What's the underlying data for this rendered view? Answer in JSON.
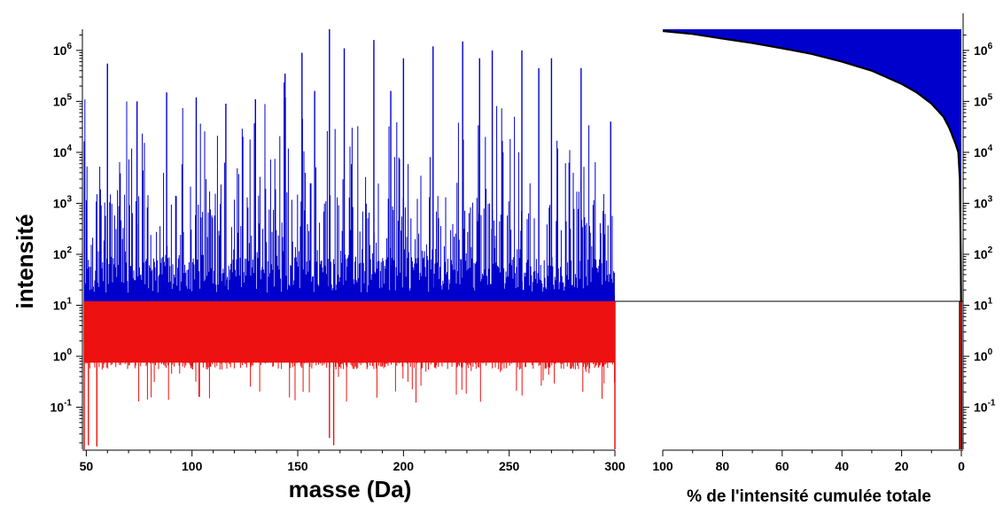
{
  "chart_data": [
    {
      "type": "mass-spectrum",
      "xlabel": "masse (Da)",
      "ylabel": "intensité",
      "xlim": [
        49,
        300
      ],
      "ylim": [
        0.015,
        2600000
      ],
      "yscale": "log",
      "x_ticks": [
        50,
        100,
        150,
        200,
        250,
        300
      ],
      "y_ticks": [
        {
          "value": 0.1,
          "base": "10",
          "exp": "-1"
        },
        {
          "value": 1,
          "base": "10",
          "exp": "0"
        },
        {
          "value": 10,
          "base": "10",
          "exp": "1"
        },
        {
          "value": 100,
          "base": "10",
          "exp": "2"
        },
        {
          "value": 1000,
          "base": "10",
          "exp": "3"
        },
        {
          "value": 10000,
          "base": "10",
          "exp": "4"
        },
        {
          "value": 100000,
          "base": "10",
          "exp": "5"
        },
        {
          "value": 1000000,
          "base": "10",
          "exp": "6"
        }
      ],
      "threshold": 12,
      "colors": {
        "above_threshold": "#0000cc",
        "below_threshold": "#ee1111"
      },
      "notable_peaks": [
        {
          "x": 60,
          "y": 550000
        },
        {
          "x": 74,
          "y": 100000
        },
        {
          "x": 88,
          "y": 150000
        },
        {
          "x": 102,
          "y": 120000
        },
        {
          "x": 116,
          "y": 90000
        },
        {
          "x": 130,
          "y": 110000
        },
        {
          "x": 144,
          "y": 350000
        },
        {
          "x": 152,
          "y": 900000
        },
        {
          "x": 158,
          "y": 160000
        },
        {
          "x": 165,
          "y": 2600000
        },
        {
          "x": 172,
          "y": 1100000
        },
        {
          "x": 186,
          "y": 1600000
        },
        {
          "x": 194,
          "y": 160000
        },
        {
          "x": 200,
          "y": 700000
        },
        {
          "x": 214,
          "y": 1200000
        },
        {
          "x": 228,
          "y": 1500000
        },
        {
          "x": 236,
          "y": 700000
        },
        {
          "x": 242,
          "y": 1000000
        },
        {
          "x": 256,
          "y": 1000000
        },
        {
          "x": 264,
          "y": 450000
        },
        {
          "x": 270,
          "y": 700000
        },
        {
          "x": 284,
          "y": 450000
        },
        {
          "x": 298,
          "y": 40000
        }
      ],
      "notable_dips": [
        {
          "x": 51,
          "y": 0.018
        },
        {
          "x": 55,
          "y": 0.017
        },
        {
          "x": 165,
          "y": 0.025
        },
        {
          "x": 167,
          "y": 0.018
        }
      ]
    },
    {
      "type": "area",
      "xlabel": "% de l'intensité cumulée totale",
      "xlim": [
        100,
        0
      ],
      "x_ticks": [
        100,
        80,
        60,
        40,
        20,
        0
      ],
      "yscale": "log",
      "ylim": [
        0.015,
        2600000
      ],
      "y_ticks": [
        {
          "value": 0.1,
          "base": "10",
          "exp": "-1"
        },
        {
          "value": 1,
          "base": "10",
          "exp": "0"
        },
        {
          "value": 10,
          "base": "10",
          "exp": "1"
        },
        {
          "value": 100,
          "base": "10",
          "exp": "2"
        },
        {
          "value": 1000,
          "base": "10",
          "exp": "3"
        },
        {
          "value": 10000,
          "base": "10",
          "exp": "4"
        },
        {
          "value": 100000,
          "base": "10",
          "exp": "5"
        },
        {
          "value": 1000000,
          "base": "10",
          "exp": "6"
        }
      ],
      "curve": [
        {
          "x": 100,
          "y": 2400000
        },
        {
          "x": 90,
          "y": 2100000
        },
        {
          "x": 80,
          "y": 1700000
        },
        {
          "x": 70,
          "y": 1400000
        },
        {
          "x": 60,
          "y": 1100000
        },
        {
          "x": 50,
          "y": 850000
        },
        {
          "x": 40,
          "y": 600000
        },
        {
          "x": 30,
          "y": 400000
        },
        {
          "x": 20,
          "y": 220000
        },
        {
          "x": 15,
          "y": 150000
        },
        {
          "x": 10,
          "y": 90000
        },
        {
          "x": 6,
          "y": 50000
        },
        {
          "x": 4,
          "y": 30000
        },
        {
          "x": 2,
          "y": 15000
        },
        {
          "x": 1,
          "y": 10000
        },
        {
          "x": 0.5,
          "y": 3000
        },
        {
          "x": 0.2,
          "y": 100
        },
        {
          "x": 0.1,
          "y": 12
        },
        {
          "x": 0,
          "y": 0.015
        }
      ],
      "threshold": 12,
      "colors": {
        "fill": "#0000cc",
        "below_threshold": "#ee1111",
        "curve": "#000000"
      }
    }
  ]
}
